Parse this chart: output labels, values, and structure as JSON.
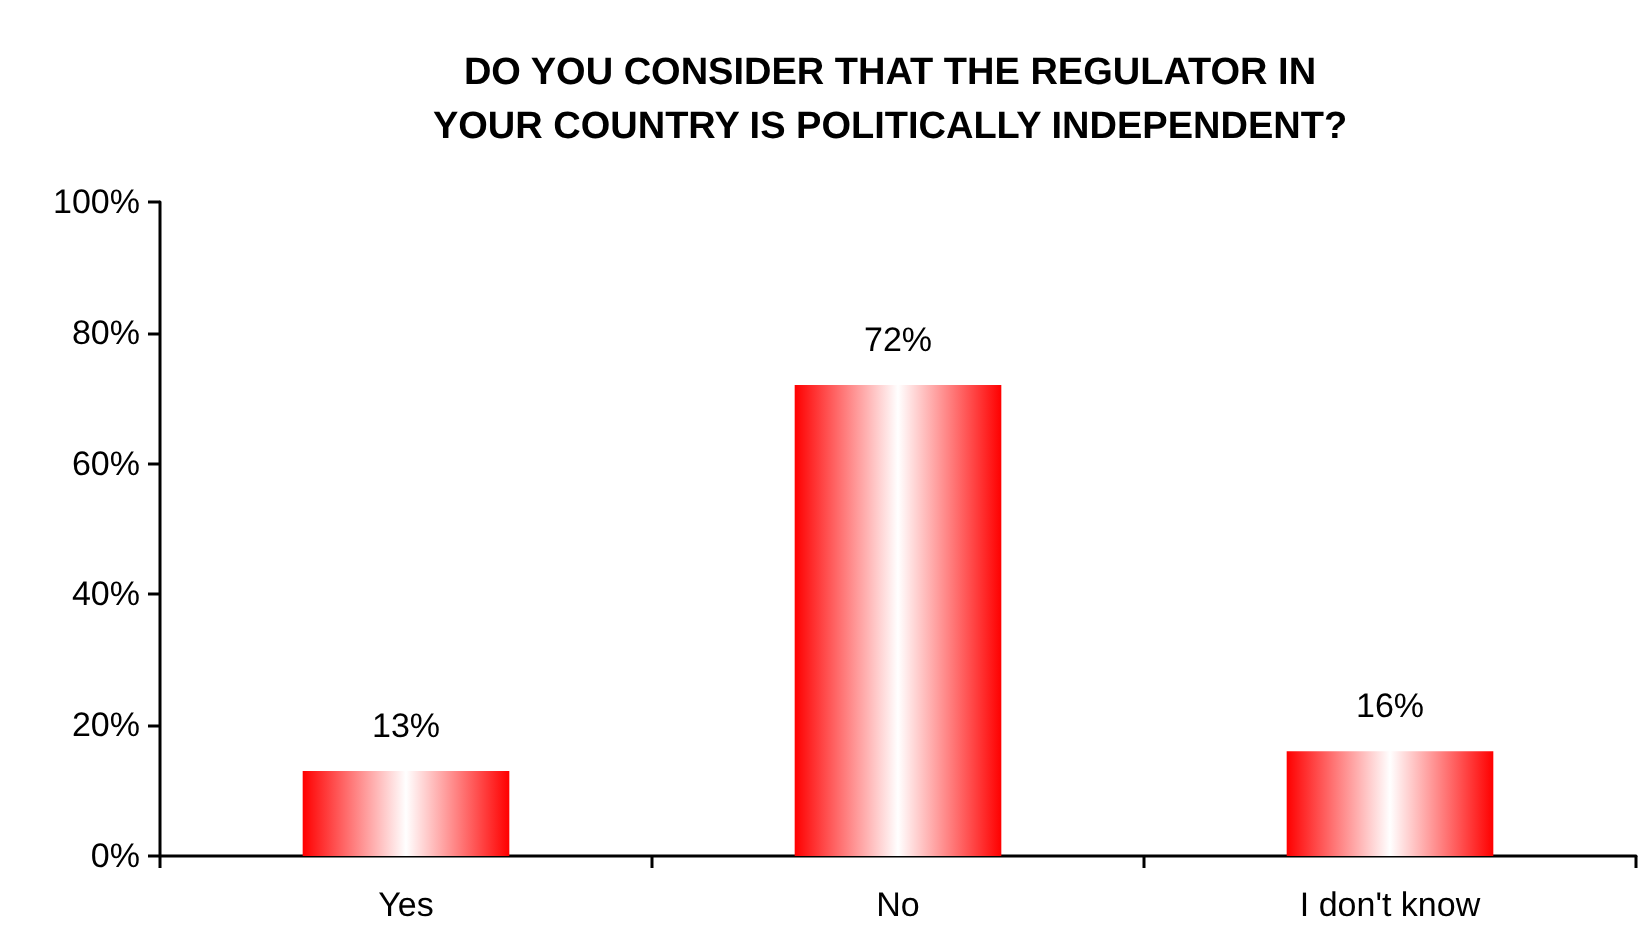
{
  "chart_data": {
    "type": "bar",
    "title": "DO YOU CONSIDER THAT THE REGULATOR IN\nYOUR COUNTRY IS POLITICALLY INDEPENDENT?",
    "categories": [
      "Yes",
      "No",
      "I don't know"
    ],
    "values": [
      13,
      72,
      16
    ],
    "color": "#ff0000",
    "value_labels": [
      "13%",
      "72%",
      "16%"
    ],
    "ylim": [
      0,
      100
    ],
    "yticks": [
      {
        "value": 0,
        "label": "0%"
      },
      {
        "value": 20,
        "label": "20%"
      },
      {
        "value": 40,
        "label": "40%"
      },
      {
        "value": 60,
        "label": "60%"
      },
      {
        "value": 80,
        "label": "80%"
      },
      {
        "value": 100,
        "label": "100%"
      }
    ],
    "grid": false
  }
}
